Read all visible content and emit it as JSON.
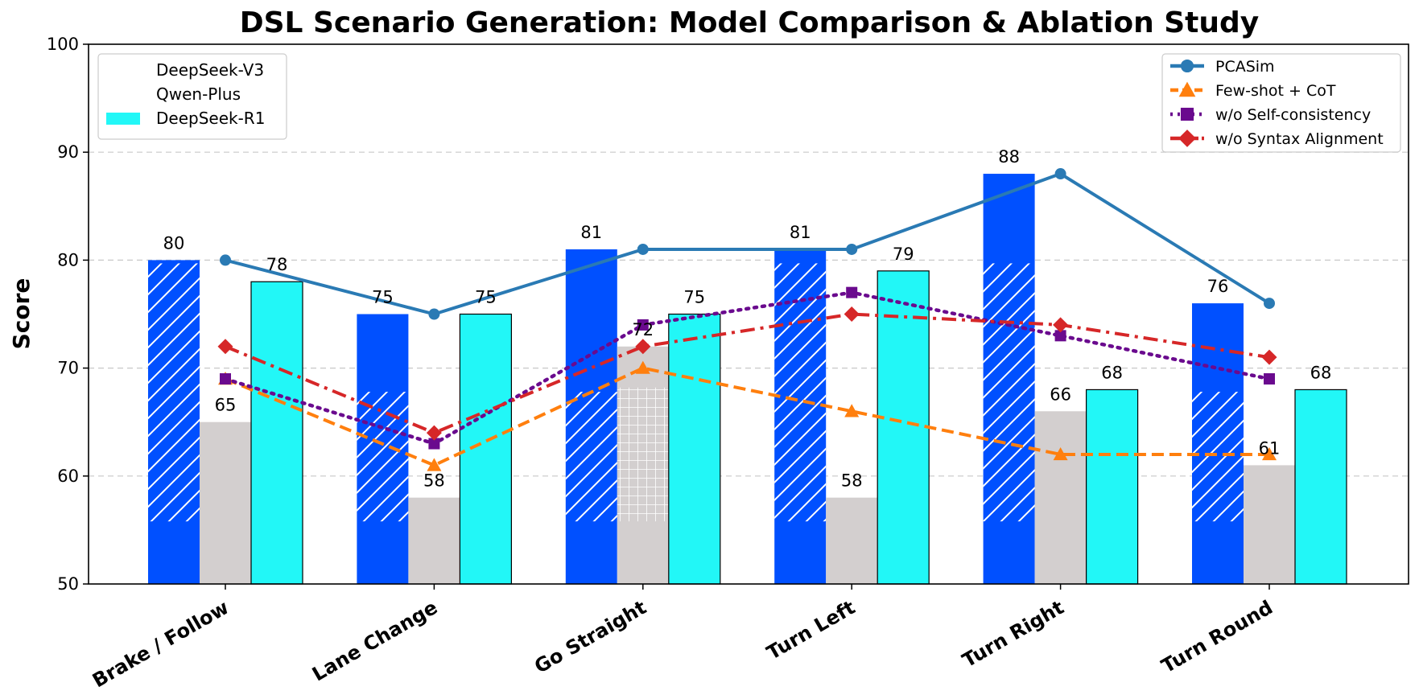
{
  "chart_data": {
    "type": "bar",
    "title": "DSL Scenario Generation: Model Comparison & Ablation Study",
    "xlabel": "",
    "ylabel": "Score",
    "ylim": [
      50,
      100
    ],
    "yticks": [
      50,
      60,
      70,
      80,
      90,
      100
    ],
    "grid": "horizontal-dashed",
    "categories": [
      "Brake / Follow",
      "Lane Change",
      "Go Straight",
      "Turn Left",
      "Turn Right",
      "Turn Round"
    ],
    "bar_series": [
      {
        "name": "DeepSeek-V3",
        "values": [
          80,
          75,
          81,
          81,
          88,
          76
        ],
        "color": "#0050ff",
        "hatch": "diagonal"
      },
      {
        "name": "Qwen-Plus",
        "values": [
          65,
          58,
          72,
          58,
          66,
          61
        ],
        "color": "#d3cfcf",
        "hatch": "none"
      },
      {
        "name": "DeepSeek-R1",
        "values": [
          78,
          75,
          75,
          79,
          68,
          68
        ],
        "color": "#22f7f7",
        "hatch": "none"
      }
    ],
    "line_series": [
      {
        "name": "PCASim",
        "values": [
          80,
          75,
          81,
          81,
          88,
          76
        ],
        "color": "#2a7ab4",
        "style": "solid",
        "marker": "circle"
      },
      {
        "name": "Few-shot + CoT",
        "values": [
          69,
          61,
          70,
          66,
          62,
          62
        ],
        "color": "#ff7f0e",
        "style": "dashed",
        "marker": "triangle"
      },
      {
        "name": "w/o Self-consistency",
        "values": [
          69,
          63,
          74,
          77,
          73,
          69
        ],
        "color": "#6a0a8e",
        "style": "dotted",
        "marker": "square"
      },
      {
        "name": "w/o Syntax Alignment",
        "values": [
          72,
          64,
          72,
          75,
          74,
          71
        ],
        "color": "#d62728",
        "style": "dashdot",
        "marker": "diamond"
      }
    ],
    "legend_bars_position": "top-left",
    "legend_lines_position": "top-right"
  }
}
